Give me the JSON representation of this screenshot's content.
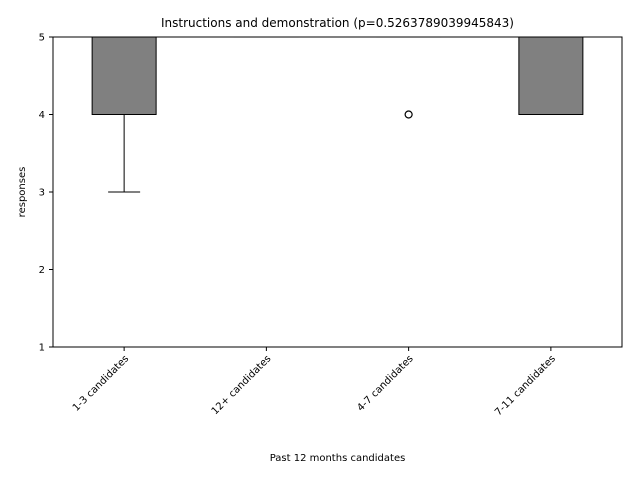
{
  "chart_data": {
    "type": "box",
    "title": "Instructions and demonstration (p=0.5263789039945843)",
    "xlabel": "Past 12 months candidates",
    "ylabel": "responses",
    "ylim": [
      1,
      5
    ],
    "yticks": [
      1,
      2,
      3,
      4,
      5
    ],
    "categories": [
      "1-3 candidates",
      "12+ candidates",
      "4-7 candidates",
      "7-11 candidates"
    ],
    "boxes": [
      {
        "category": "1-3 candidates",
        "whisker_low": 3,
        "q1": 4,
        "median": 5,
        "q3": 5,
        "whisker_high": 5,
        "outliers": []
      },
      {
        "category": "12+ candidates",
        "whisker_low": 5,
        "q1": 5,
        "median": 5,
        "q3": 5,
        "whisker_high": 5,
        "outliers": []
      },
      {
        "category": "4-7 candidates",
        "whisker_low": 5,
        "q1": 5,
        "median": 5,
        "q3": 5,
        "whisker_high": 5,
        "outliers": [
          4
        ]
      },
      {
        "category": "7-11 candidates",
        "whisker_low": 4,
        "q1": 4,
        "median": 4,
        "q3": 5,
        "whisker_high": 5,
        "outliers": []
      }
    ],
    "colors": {
      "box_fill": "#808080",
      "box_edge": "#000000",
      "median": "#000000",
      "whisker": "#000000",
      "outlier_edge": "#000000"
    },
    "grid": false
  }
}
